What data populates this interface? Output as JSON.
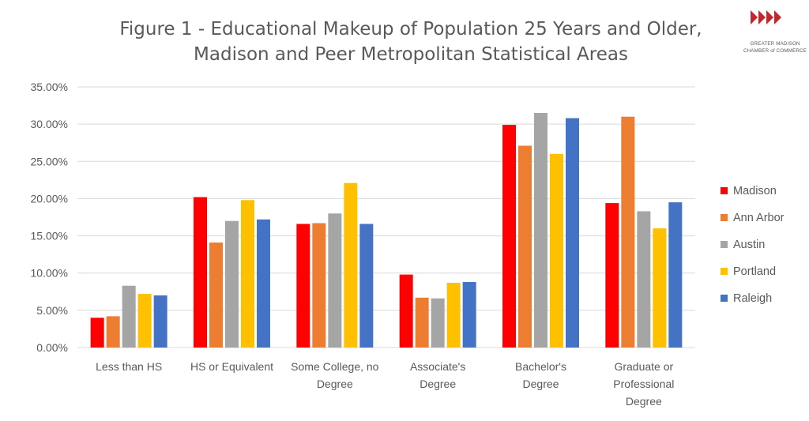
{
  "chart_data": {
    "type": "bar",
    "title": [
      "Figure 1 - Educational Makeup of Population 25 Years and Older,",
      "Madison and Peer Metropolitan Statistical Areas"
    ],
    "categories": [
      [
        "Less than HS"
      ],
      [
        "HS or Equivalent"
      ],
      [
        "Some College, no",
        "Degree"
      ],
      [
        "Associate's",
        "Degree"
      ],
      [
        "Bachelor's",
        "Degree"
      ],
      [
        "Graduate or",
        "Professional",
        "Degree"
      ]
    ],
    "series": [
      {
        "name": "Madison",
        "color": "#ff0000",
        "values": [
          4.0,
          20.2,
          16.6,
          9.8,
          29.9,
          19.4
        ]
      },
      {
        "name": "Ann Arbor",
        "color": "#ed7d31",
        "values": [
          4.2,
          14.1,
          16.7,
          6.7,
          27.1,
          31.0
        ]
      },
      {
        "name": "Austin",
        "color": "#a5a5a5",
        "values": [
          8.3,
          17.0,
          18.0,
          6.6,
          31.5,
          18.3
        ]
      },
      {
        "name": "Portland",
        "color": "#ffc000",
        "values": [
          7.2,
          19.8,
          22.1,
          8.7,
          26.0,
          16.0
        ]
      },
      {
        "name": "Raleigh",
        "color": "#4472c4",
        "values": [
          7.0,
          17.2,
          16.6,
          8.8,
          30.8,
          19.5
        ]
      }
    ],
    "ylim": [
      0,
      35
    ],
    "yticks": [
      "0.00%",
      "5.00%",
      "10.00%",
      "15.00%",
      "20.00%",
      "25.00%",
      "30.00%",
      "35.00%"
    ],
    "grid": true,
    "legend": "right"
  },
  "logo": {
    "line1": "GREATER MADISON",
    "line2": "CHAMBER of COMMERCE",
    "color": "#c0282d"
  }
}
